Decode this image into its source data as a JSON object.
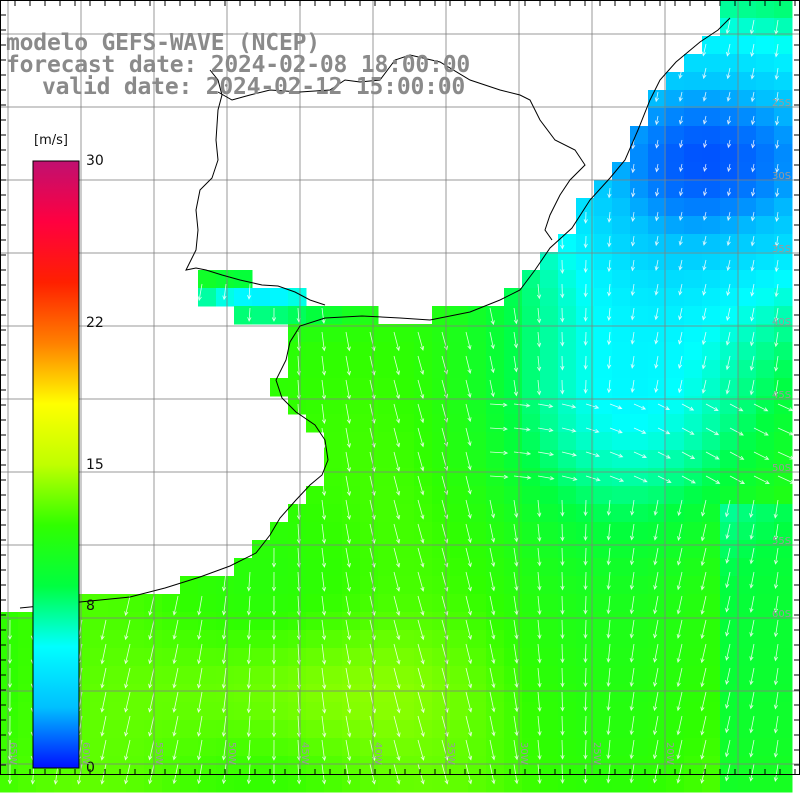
{
  "title": {
    "line1": "modelo GEFS-WAVE (NCEP)",
    "line2": "forecast date: 2024-02-08 18:00:00",
    "line3": "valid date: 2024-02-12 15:00:00"
  },
  "colorbar": {
    "unit": "[m/s]",
    "ticks": [
      {
        "value": 30,
        "label": "30"
      },
      {
        "value": 22,
        "label": "22"
      },
      {
        "value": 15,
        "label": "15"
      },
      {
        "value": 8,
        "label": "8"
      },
      {
        "value": 0,
        "label": "0"
      }
    ],
    "range": [
      0,
      30
    ],
    "stops": [
      "#0010ff",
      "#00c0ff",
      "#00ffff",
      "#00ff40",
      "#30ff00",
      "#c0ff00",
      "#ffff00",
      "#ff8000",
      "#ff2000",
      "#ff0040",
      "#c01070"
    ]
  },
  "map": {
    "variable": "wind speed",
    "lon_labels": [
      "65W",
      "60W",
      "55W",
      "50W",
      "45W",
      "40W",
      "35W",
      "30W",
      "25W",
      "20W"
    ],
    "lat_labels": [
      "25S",
      "30S",
      "35S",
      "40S",
      "45S",
      "50S",
      "55S",
      "60S"
    ],
    "colors": {
      "land": "#ffffff",
      "grid": "#808080",
      "coast": "#000000",
      "arrow": "#ffffff",
      "title": "#8a8a8a"
    }
  }
}
